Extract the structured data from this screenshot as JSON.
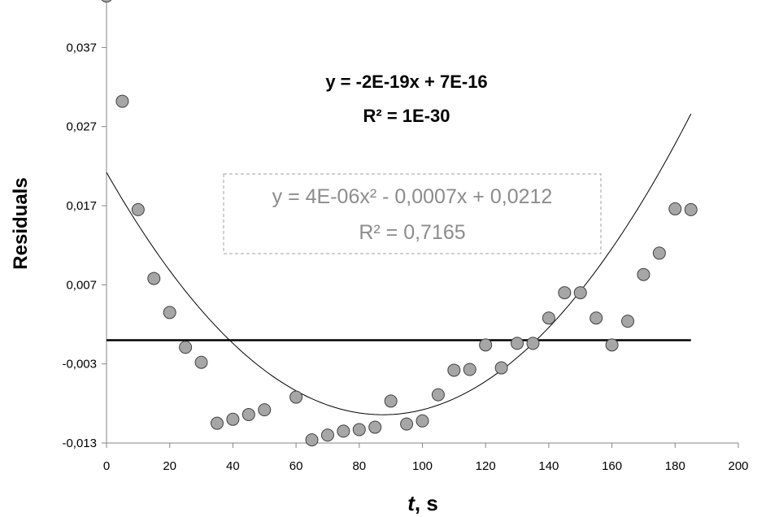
{
  "chart_data": {
    "type": "scatter",
    "xlabel_italic": "t",
    "xlabel_rest": ", s",
    "ylabel": "Residuals",
    "xlim": [
      0,
      200
    ],
    "ylim": [
      -0.013,
      0.043
    ],
    "x_ticks": [
      0,
      20,
      40,
      60,
      80,
      100,
      120,
      140,
      160,
      180,
      200
    ],
    "x_tick_labels": [
      "0",
      "20",
      "40",
      "60",
      "80",
      "100",
      "120",
      "140",
      "160",
      "180",
      "200"
    ],
    "y_ticks": [
      -0.013,
      -0.003,
      0.007,
      0.017,
      0.027,
      0.037
    ],
    "y_tick_labels": [
      "-0,013",
      "-0,003",
      "0,007",
      "0,017",
      "0,027",
      "0,037"
    ],
    "grid": false,
    "series": [
      {
        "type": "scatter",
        "marker_color": "#a6a6a6",
        "x": [
          0,
          5,
          10,
          15,
          20,
          25,
          30,
          35,
          40,
          45,
          50,
          60,
          65,
          70,
          75,
          80,
          85,
          90,
          95,
          100,
          105,
          110,
          115,
          120,
          125,
          130,
          135,
          140,
          145,
          150,
          155,
          160,
          165,
          170,
          175,
          180,
          185
        ],
        "y": [
          0.0435,
          0.0302,
          0.0165,
          0.0078,
          0.0035,
          -0.0009,
          -0.0028,
          -0.0105,
          -0.01,
          -0.0094,
          -0.0088,
          -0.0072,
          -0.0126,
          -0.012,
          -0.0115,
          -0.0113,
          -0.011,
          -0.0077,
          -0.0106,
          -0.0102,
          -0.0069,
          -0.0038,
          -0.0037,
          -0.0006,
          -0.0035,
          -0.0004,
          -0.0004,
          0.0028,
          0.006,
          0.006,
          0.0028,
          -0.0006,
          0.0024,
          0.0083,
          0.011,
          0.0166,
          0.0165
        ]
      },
      {
        "type": "line",
        "fit": "linear",
        "color": "#000000",
        "x": [
          0,
          185
        ],
        "y": [
          0.0,
          0.0
        ]
      },
      {
        "type": "line",
        "fit": "polynomial",
        "color": "#000000",
        "coefficients": [
          0.0212,
          -0.0007,
          4e-06
        ],
        "x_range": [
          0,
          185
        ]
      }
    ],
    "annotations": {
      "linear_eq": "y = -2E-19x + 7E-16",
      "linear_r2": "R² = 1E-30",
      "poly_eq": "y = 4E-06x² - 0,0007x + 0,0212",
      "poly_r2": "R² = 0,7165"
    }
  }
}
